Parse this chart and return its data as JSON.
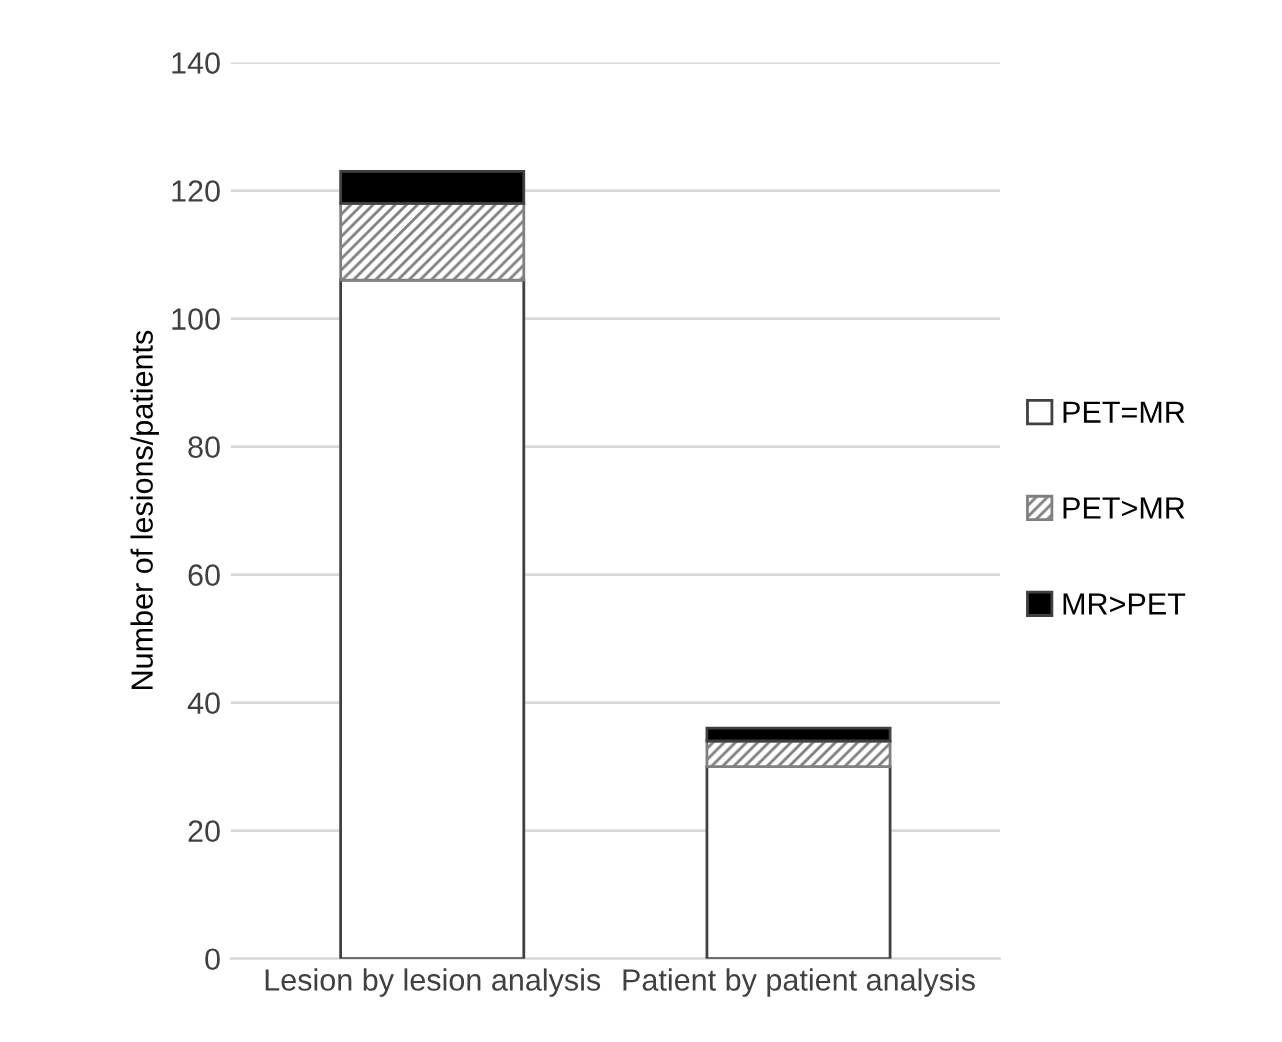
{
  "chart_data": {
    "type": "bar",
    "stacked": true,
    "ylabel": "Number of lesions/patients",
    "categories": [
      "Lesion by lesion analysis",
      "Patient by patient analysis"
    ],
    "series": [
      {
        "name": "PET=MR",
        "color": "#ffffff",
        "values": [
          106,
          30
        ]
      },
      {
        "name": "PET>MR",
        "color": "#808080",
        "values": [
          12,
          4
        ]
      },
      {
        "name": "MR>PET",
        "color": "#000000",
        "values": [
          5,
          2
        ]
      }
    ],
    "ylim": [
      0,
      140
    ],
    "yticks": [
      0,
      20,
      40,
      60,
      80,
      100,
      120,
      140
    ],
    "grid": "y",
    "legend": "right"
  }
}
